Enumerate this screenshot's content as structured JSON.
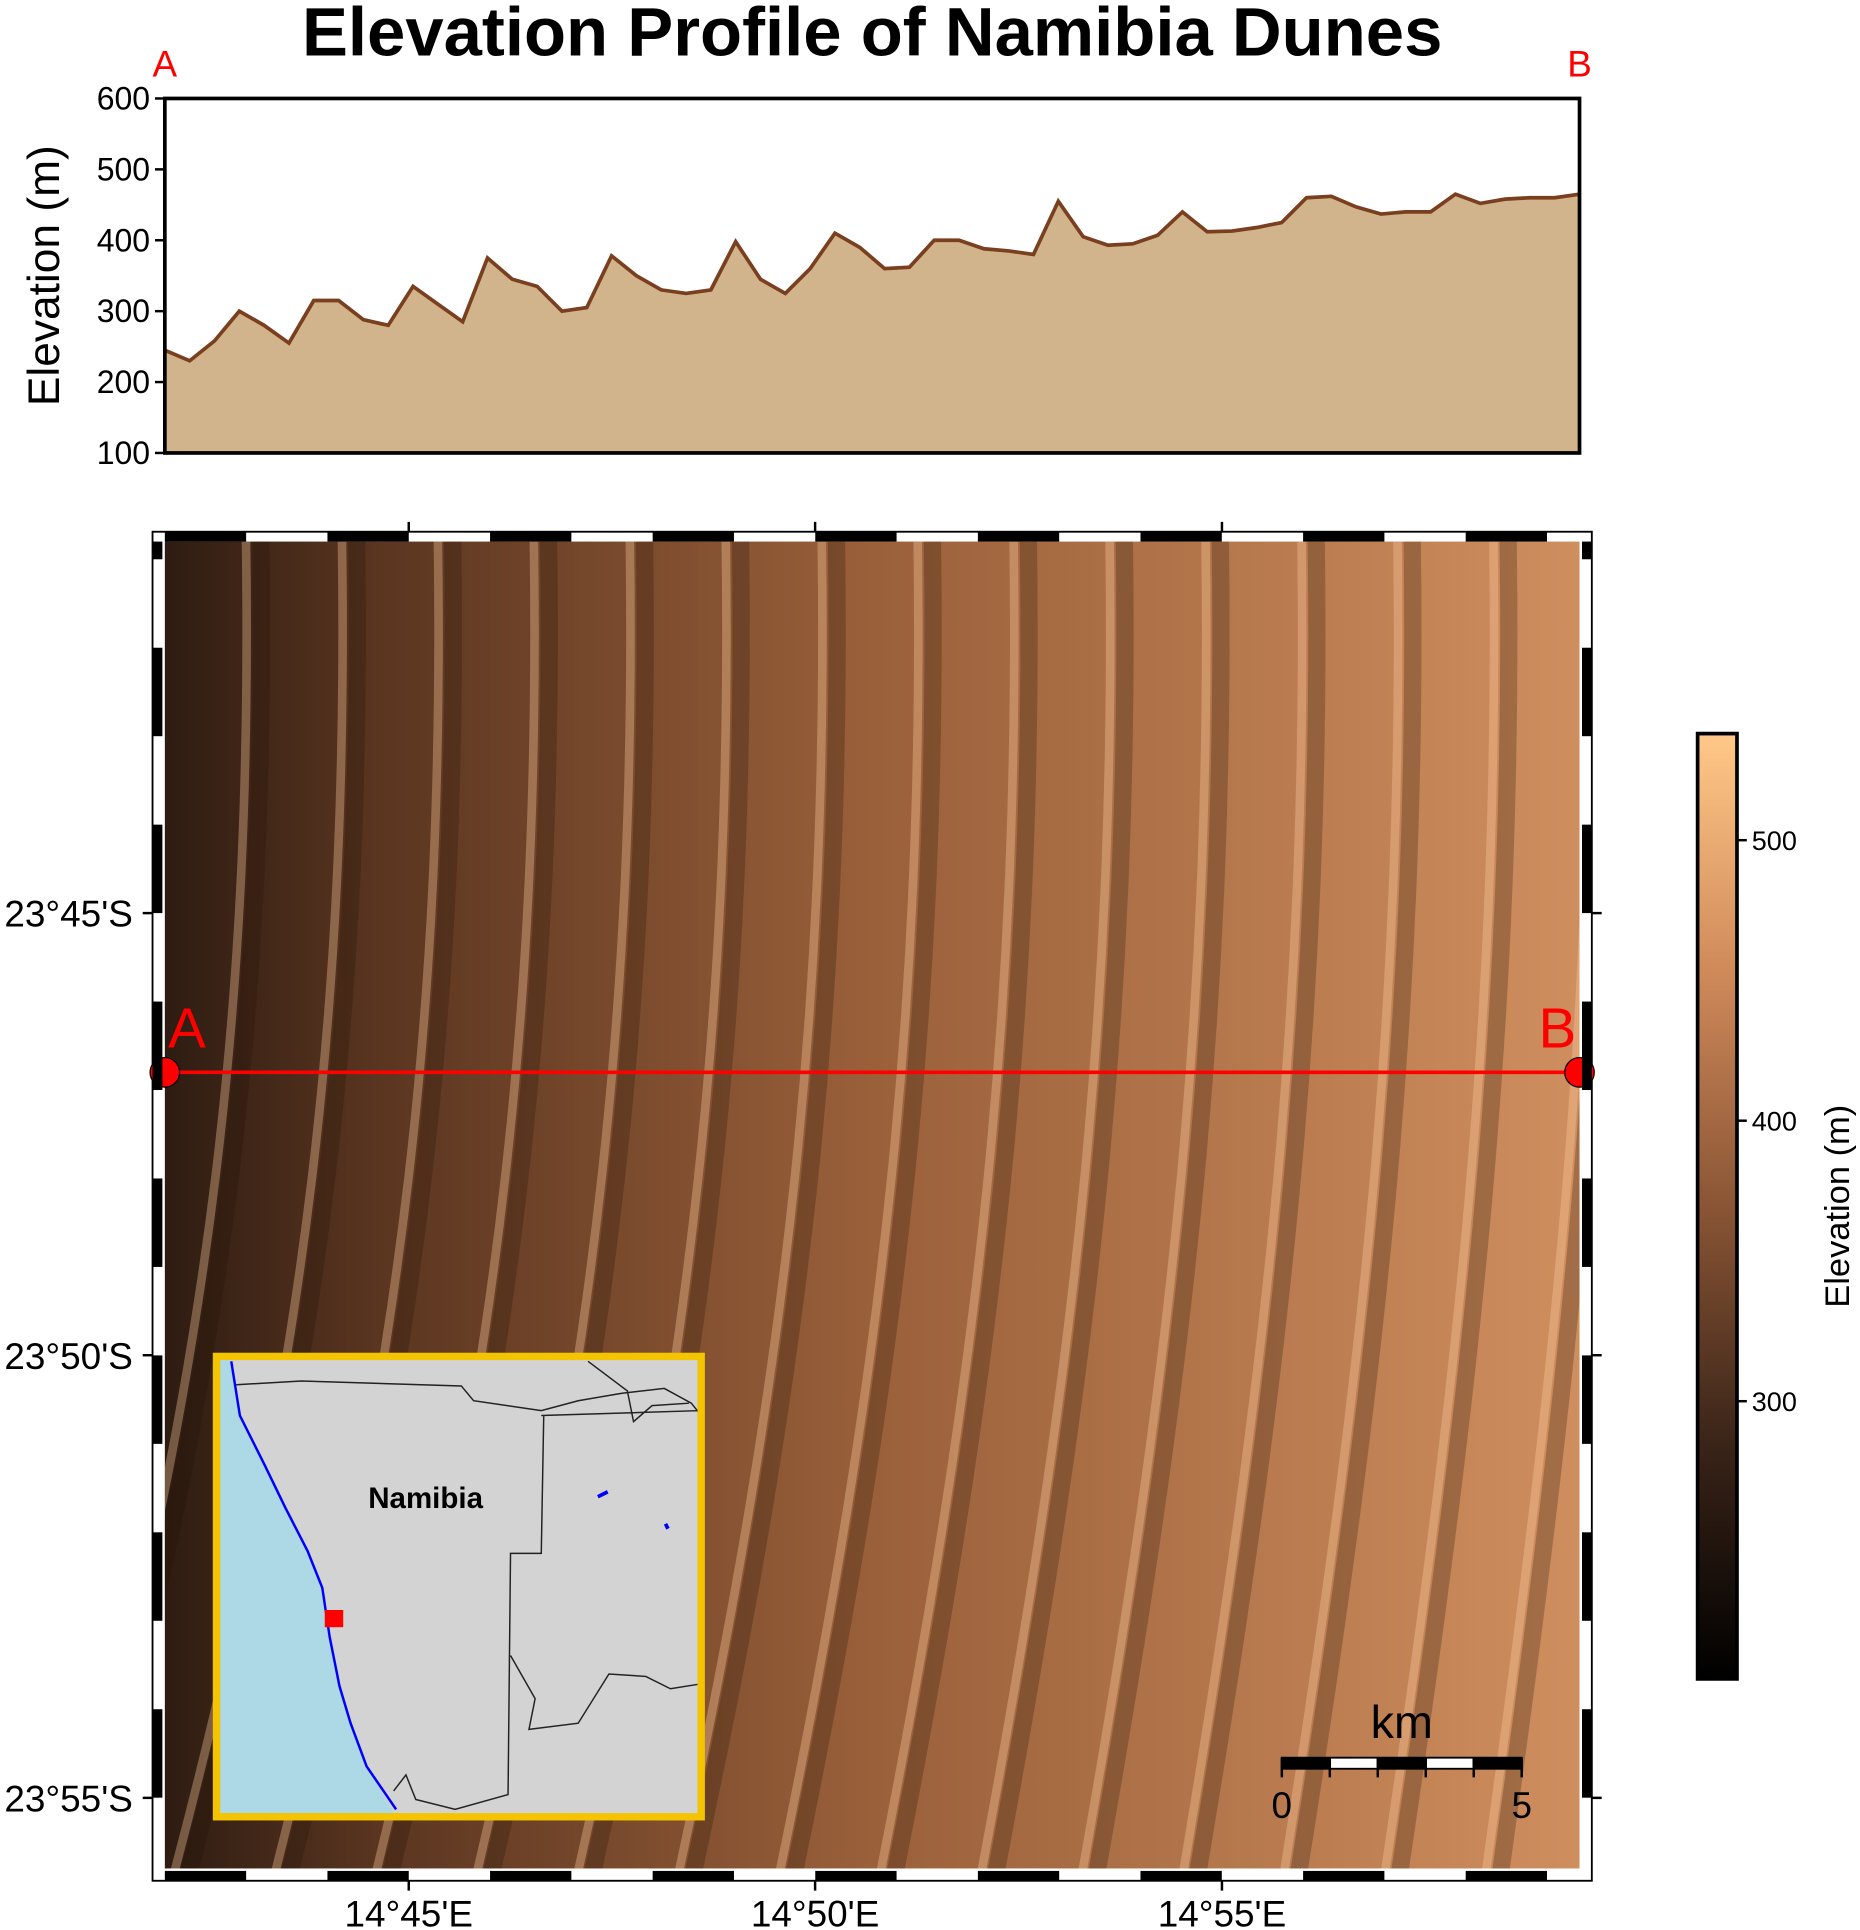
{
  "title": "Elevation Profile of Namibia Dunes",
  "profile": {
    "type": "area",
    "ylabel": "Elevation (m)",
    "ylim": [
      100,
      600
    ],
    "yticks": [
      100,
      200,
      300,
      400,
      500,
      600
    ],
    "start_label": "A",
    "end_label": "B",
    "line_color": "#7a3f1f",
    "fill_color": "#d2b48c",
    "values": [
      245,
      230,
      258,
      300,
      280,
      255,
      315,
      315,
      288,
      280,
      335,
      310,
      285,
      375,
      345,
      335,
      300,
      305,
      378,
      350,
      330,
      325,
      330,
      398,
      345,
      325,
      360,
      410,
      390,
      360,
      362,
      400,
      400,
      388,
      385,
      380,
      455,
      405,
      393,
      395,
      407,
      440,
      412,
      413,
      418,
      425,
      460,
      462,
      447,
      437,
      440,
      440,
      465,
      452,
      458,
      460,
      460,
      465
    ]
  },
  "map": {
    "xlim": [
      14.7,
      14.99
    ],
    "ylim": [
      -23.93,
      -23.68
    ],
    "xticks": [
      {
        "value": 14.75,
        "label": "14°45'E"
      },
      {
        "value": 14.8333,
        "label": "14°50'E"
      },
      {
        "value": 14.9167,
        "label": "14°55'E"
      }
    ],
    "yticks": [
      {
        "value": -23.75,
        "label": "23°45'S"
      },
      {
        "value": -23.8333,
        "label": "23°50'S"
      },
      {
        "value": -23.9167,
        "label": "23°55'S"
      }
    ],
    "profile_line": {
      "lat": -23.78,
      "lon": [
        14.7,
        14.99
      ],
      "start_label": "A",
      "end_label": "B",
      "color": "#ff0000"
    }
  },
  "colorbar": {
    "label": "Elevation (m)",
    "clim": [
      201,
      538
    ],
    "ticks": [
      300,
      400,
      500
    ]
  },
  "inset": {
    "label": "Namibia"
  },
  "scalebar": {
    "unit": "km",
    "ticks": [
      0,
      5
    ]
  }
}
